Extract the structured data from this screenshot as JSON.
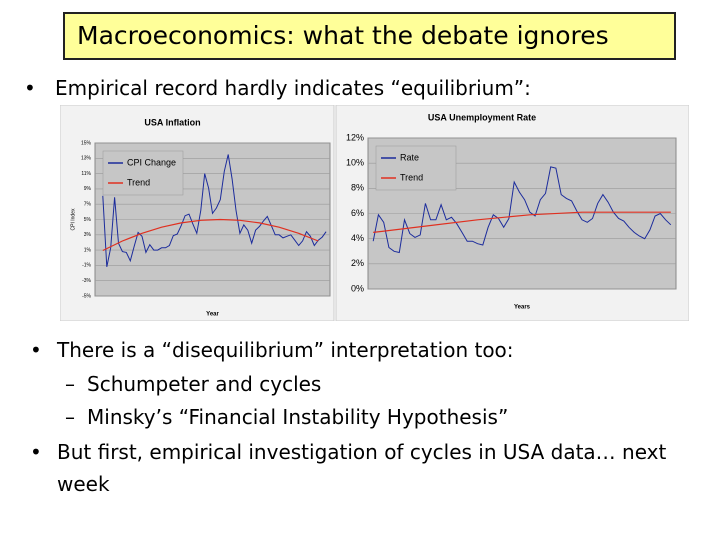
{
  "title": "Macroeconomics: what the debate ignores",
  "bullets": [
    {
      "text": "Empirical record hardly indicates “equilibrium”:"
    },
    {
      "text": "There is a “disequilibrium” interpretation too:",
      "sub": [
        "Schumpeter and cycles",
        "Minsky’s “Financial Instability Hypothesis”"
      ]
    },
    {
      "text": "But first, empirical investigation of cycles in USA data… next week"
    }
  ],
  "chart_data": [
    {
      "type": "line",
      "title": "USA Inflation",
      "xlabel": "Year",
      "ylabel": "CPI Index",
      "xlim": [
        1946,
        2006
      ],
      "ylim": [
        -5,
        15
      ],
      "yticks": [
        {
          "value": 15,
          "label": "15%"
        },
        {
          "value": 13,
          "label": "13%"
        },
        {
          "value": 11,
          "label": "11%"
        },
        {
          "value": 9,
          "label": "9%"
        },
        {
          "value": 7,
          "label": "7%"
        },
        {
          "value": 5,
          "label": "5%"
        },
        {
          "value": 3,
          "label": "3%"
        },
        {
          "value": 1,
          "label": "1%"
        },
        {
          "value": -1,
          "label": "-1%"
        },
        {
          "value": -3,
          "label": "-3%"
        },
        {
          "value": -5,
          "label": "-5%"
        }
      ],
      "grid": true,
      "legend": "upper-left",
      "series": [
        {
          "name": "CPI Change",
          "color": "#1c2c9c",
          "x": [
            1948,
            1949,
            1950,
            1951,
            1952,
            1953,
            1954,
            1955,
            1956,
            1957,
            1958,
            1959,
            1960,
            1961,
            1962,
            1963,
            1964,
            1965,
            1966,
            1967,
            1968,
            1969,
            1970,
            1971,
            1972,
            1973,
            1974,
            1975,
            1976,
            1977,
            1978,
            1979,
            1980,
            1981,
            1982,
            1983,
            1984,
            1985,
            1986,
            1987,
            1988,
            1989,
            1990,
            1991,
            1992,
            1993,
            1994,
            1995,
            1996,
            1997,
            1998,
            1999,
            2000,
            2001,
            2002,
            2003,
            2004,
            2005
          ],
          "values": [
            8.1,
            -1.2,
            1.3,
            7.9,
            1.9,
            0.8,
            0.7,
            -0.4,
            1.5,
            3.3,
            2.8,
            0.7,
            1.7,
            1.0,
            1.0,
            1.3,
            1.3,
            1.6,
            2.9,
            3.1,
            4.2,
            5.5,
            5.7,
            4.4,
            3.2,
            6.2,
            11.0,
            9.1,
            5.8,
            6.5,
            7.6,
            11.3,
            13.5,
            10.3,
            6.2,
            3.2,
            4.3,
            3.6,
            1.9,
            3.6,
            4.1,
            4.8,
            5.4,
            4.2,
            3.0,
            3.0,
            2.6,
            2.8,
            3.0,
            2.3,
            1.6,
            2.2,
            3.4,
            2.8,
            1.6,
            2.3,
            2.7,
            3.4
          ]
        },
        {
          "name": "Trend",
          "color": "#e03020",
          "x": [
            1948,
            1953,
            1958,
            1963,
            1968,
            1973,
            1978,
            1983,
            1988,
            1993,
            1998,
            2003
          ],
          "values": [
            0.95,
            2.19,
            3.2,
            3.99,
            4.55,
            4.89,
            5,
            4.89,
            4.55,
            3.99,
            3.2,
            2.19
          ]
        }
      ]
    },
    {
      "type": "line",
      "title": "USA Unemployment Rate",
      "xlabel": "Years",
      "xlim": [
        1947,
        2006
      ],
      "ylim": [
        0,
        12
      ],
      "yticks": [
        {
          "value": 0,
          "label": "0%"
        },
        {
          "value": 2,
          "label": "2%"
        },
        {
          "value": 4,
          "label": "4%"
        },
        {
          "value": 6,
          "label": "6%"
        },
        {
          "value": 8,
          "label": "8%"
        },
        {
          "value": 10,
          "label": "10%"
        },
        {
          "value": 12,
          "label": "12%"
        }
      ],
      "grid": true,
      "legend": "upper-left",
      "series": [
        {
          "name": "Rate",
          "color": "#1c2c9c",
          "x": [
            1948,
            1949,
            1950,
            1951,
            1952,
            1953,
            1954,
            1955,
            1956,
            1957,
            1958,
            1959,
            1960,
            1961,
            1962,
            1963,
            1964,
            1965,
            1966,
            1967,
            1968,
            1969,
            1970,
            1971,
            1972,
            1973,
            1974,
            1975,
            1976,
            1977,
            1978,
            1979,
            1980,
            1981,
            1982,
            1983,
            1984,
            1985,
            1986,
            1987,
            1988,
            1989,
            1990,
            1991,
            1992,
            1993,
            1994,
            1995,
            1996,
            1997,
            1998,
            1999,
            2000,
            2001,
            2002,
            2003,
            2004,
            2005
          ],
          "values": [
            3.8,
            5.9,
            5.3,
            3.3,
            3.0,
            2.9,
            5.5,
            4.4,
            4.1,
            4.3,
            6.8,
            5.5,
            5.5,
            6.7,
            5.5,
            5.7,
            5.2,
            4.5,
            3.8,
            3.8,
            3.6,
            3.5,
            4.9,
            5.9,
            5.6,
            4.9,
            5.6,
            8.5,
            7.7,
            7.1,
            6.1,
            5.8,
            7.1,
            7.6,
            9.7,
            9.6,
            7.5,
            7.2,
            7.0,
            6.2,
            5.5,
            5.3,
            5.6,
            6.8,
            7.5,
            6.9,
            6.1,
            5.6,
            5.4,
            4.9,
            4.5,
            4.2,
            4.0,
            4.7,
            5.8,
            6.0,
            5.5,
            5.1
          ]
        },
        {
          "name": "Trend",
          "color": "#e03020",
          "x": [
            1948,
            1958,
            1968,
            1978,
            1988,
            1998,
            2005
          ],
          "values": [
            4.5,
            5.0,
            5.5,
            5.9,
            6.1,
            6.1,
            6.1
          ]
        }
      ]
    }
  ]
}
